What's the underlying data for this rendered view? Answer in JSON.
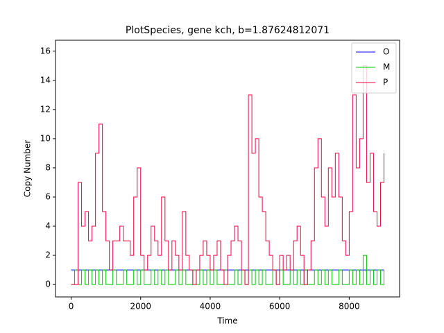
{
  "chart_data": {
    "type": "line",
    "title": "PlotSpecies, gene kch, b=1.87624812071",
    "x_label": "Time",
    "y_label": "Copy Number",
    "x": [
      0,
      100,
      200,
      300,
      400,
      500,
      600,
      700,
      800,
      900,
      1000,
      1100,
      1200,
      1300,
      1400,
      1500,
      1600,
      1700,
      1800,
      1900,
      2000,
      2100,
      2200,
      2300,
      2400,
      2500,
      2600,
      2700,
      2800,
      2900,
      3000,
      3100,
      3200,
      3300,
      3400,
      3500,
      3600,
      3700,
      3800,
      3900,
      4000,
      4100,
      4200,
      4300,
      4400,
      4500,
      4600,
      4700,
      4800,
      4900,
      5000,
      5100,
      5200,
      5300,
      5400,
      5500,
      5600,
      5700,
      5800,
      5900,
      6000,
      6100,
      6200,
      6300,
      6400,
      6500,
      6600,
      6700,
      6800,
      6900,
      7000,
      7100,
      7200,
      7300,
      7400,
      7500,
      7600,
      7700,
      7800,
      7900,
      8000,
      8100,
      8200,
      8300,
      8400,
      8500,
      8600,
      8700,
      8800,
      8900,
      9000
    ],
    "series": [
      {
        "name": "O",
        "color": "#0000ff",
        "values": [
          1,
          1,
          1,
          1,
          1,
          1,
          1,
          1,
          1,
          1,
          1,
          1,
          1,
          1,
          1,
          1,
          1,
          1,
          1,
          1,
          1,
          1,
          1,
          1,
          1,
          1,
          1,
          1,
          1,
          1,
          1,
          1,
          1,
          1,
          1,
          1,
          1,
          1,
          1,
          1,
          1,
          1,
          1,
          1,
          1,
          1,
          1,
          1,
          1,
          1,
          1,
          1,
          1,
          1,
          1,
          1,
          1,
          1,
          1,
          1,
          1,
          1,
          1,
          1,
          1,
          1,
          1,
          1,
          1,
          1,
          1,
          1,
          1,
          1,
          1,
          1,
          1,
          1,
          1,
          1,
          1,
          1,
          1,
          1,
          1,
          1,
          1,
          1,
          1,
          1,
          1
        ]
      },
      {
        "name": "M",
        "color": "#00c800",
        "values": [
          0,
          1,
          0,
          1,
          0,
          1,
          0,
          1,
          0,
          1,
          0,
          0,
          1,
          0,
          0,
          1,
          0,
          0,
          1,
          0,
          1,
          0,
          0,
          1,
          0,
          1,
          0,
          1,
          0,
          0,
          1,
          0,
          1,
          0,
          0,
          1,
          0,
          1,
          0,
          1,
          0,
          1,
          0,
          0,
          1,
          0,
          0,
          1,
          0,
          1,
          0,
          1,
          0,
          1,
          0,
          1,
          0,
          0,
          1,
          0,
          1,
          0,
          0,
          1,
          0,
          1,
          0,
          1,
          0,
          0,
          1,
          0,
          1,
          0,
          1,
          0,
          0,
          1,
          0,
          0,
          1,
          0,
          1,
          0,
          2,
          0,
          1,
          0,
          1,
          0,
          1
        ]
      },
      {
        "name": "P",
        "color": "#f0003c",
        "values": [
          0,
          0,
          7,
          4,
          5,
          3,
          4,
          9,
          11,
          5,
          3,
          1,
          3,
          3,
          4,
          3,
          3,
          2,
          6,
          8,
          2,
          1,
          2,
          4,
          3,
          2,
          6,
          3,
          1,
          3,
          2,
          1,
          5,
          2,
          1,
          0,
          1,
          2,
          3,
          2,
          1,
          2,
          3,
          1,
          0,
          2,
          3,
          4,
          3,
          1,
          0,
          13,
          9,
          10,
          6,
          5,
          3,
          2,
          1,
          0,
          2,
          1,
          2,
          1,
          3,
          4,
          2,
          0,
          1,
          3,
          8,
          10,
          6,
          4,
          8,
          6,
          9,
          6,
          3,
          2,
          5,
          13,
          8,
          10,
          15,
          7,
          9,
          5,
          4,
          7,
          9
        ]
      }
    ],
    "xlim": [
      -450,
      9450
    ],
    "ylim": [
      -0.85,
      16.75
    ],
    "xticks": [
      0,
      2000,
      4000,
      6000,
      8000
    ],
    "yticks": [
      0,
      2,
      4,
      6,
      8,
      10,
      12,
      14,
      16
    ],
    "legend": "upper right"
  }
}
